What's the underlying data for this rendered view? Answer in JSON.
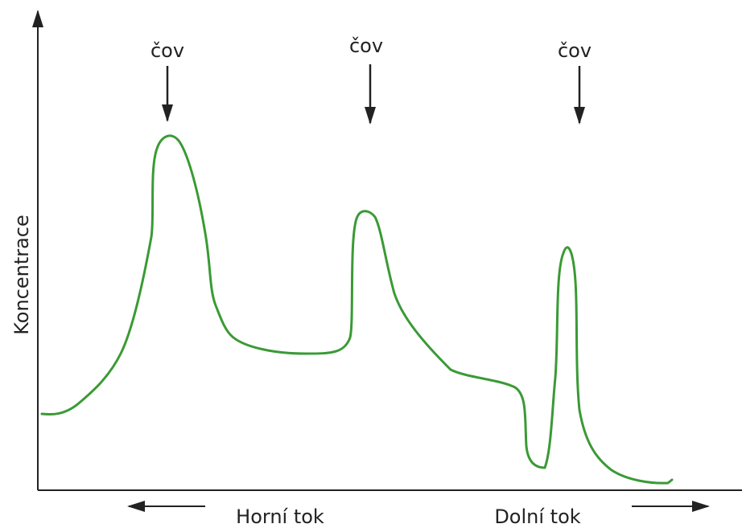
{
  "y_label": "Koncentrace",
  "annotations": [
    "čov",
    "čov",
    "čov"
  ],
  "x_labels": {
    "left": "Horní tok",
    "right": "Dolní tok"
  }
}
